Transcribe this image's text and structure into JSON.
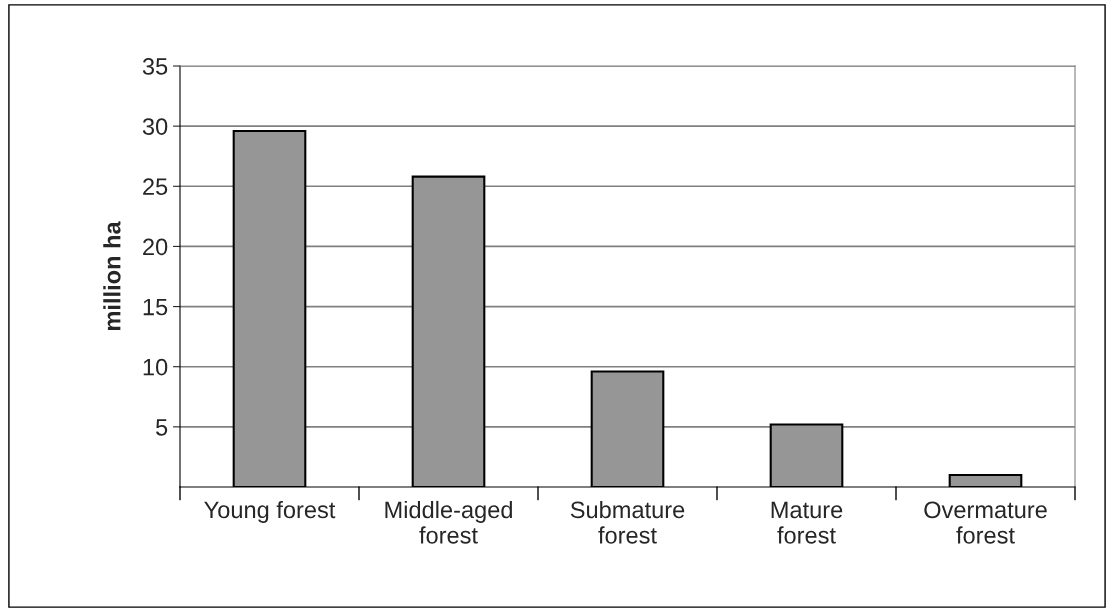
{
  "chart_data": {
    "type": "bar",
    "ylabel": "million ha",
    "categories": [
      "Young forest",
      "Middle-aged\nforest",
      "Submature\nforest",
      "Mature\nforest",
      "Overmature\nforest"
    ],
    "values": [
      29.6,
      25.8,
      9.6,
      5.2,
      1.0
    ],
    "color": "#969696",
    "ylim": [
      0,
      35
    ],
    "yticks": [
      5,
      10,
      15,
      20,
      25,
      30,
      35
    ],
    "grid": "y",
    "legend": false
  }
}
